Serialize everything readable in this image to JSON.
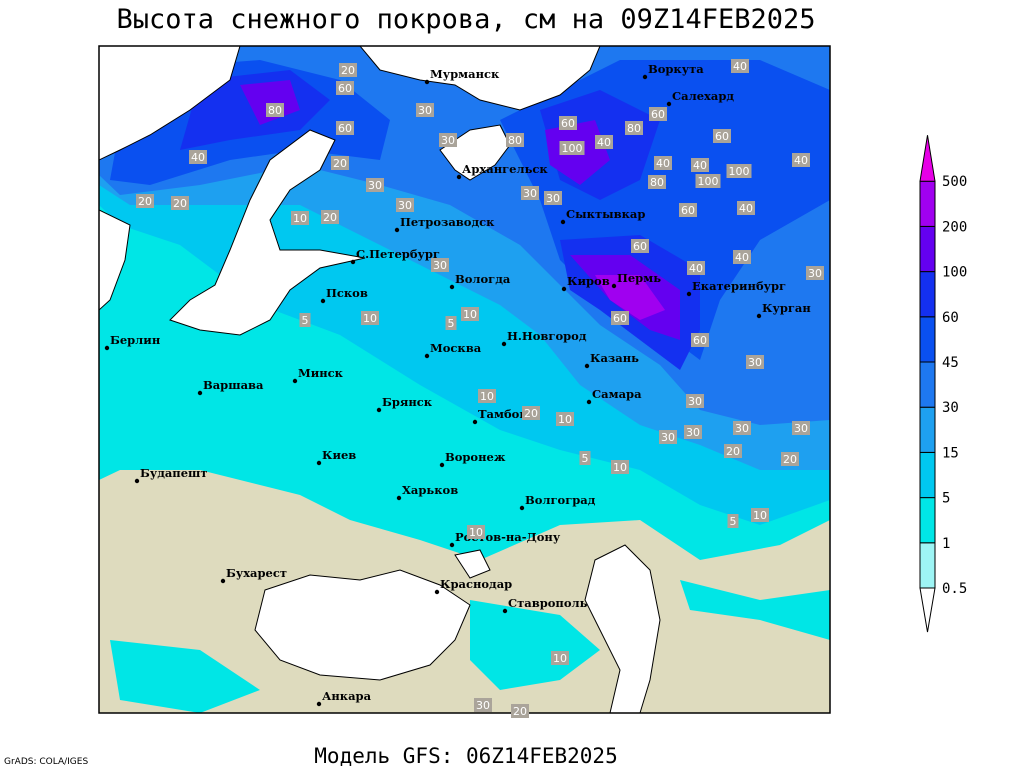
{
  "title": "Высота снежного покрова, см на 09Z14FEB2025",
  "footer": "Модель GFS: 06Z14FEB2025",
  "credit": "GrADS: COLA/IGES",
  "legend": {
    "levels": [
      0.5,
      1,
      5,
      15,
      30,
      45,
      60,
      100,
      200,
      500
    ],
    "colors": [
      "#ffffff",
      "#9ef5f5",
      "#00e6e6",
      "#00c8f0",
      "#1ea0f0",
      "#1e78f0",
      "#0a50f0",
      "#1430f0",
      "#6400f0",
      "#a000f0",
      "#e600e6"
    ]
  },
  "cities": [
    "Мурманск",
    "Воркута",
    "Салехард",
    "Архангельск",
    "Сыктывкар",
    "Петрозаводск",
    "С.Петербург",
    "Вологда",
    "Киров",
    "Пермь",
    "Екатеринбург",
    "Курган",
    "Псков",
    "Берлин",
    "Н.Новгород",
    "Москва",
    "Казань",
    "Минск",
    "Варшава",
    "Брянск",
    "Самара",
    "Тамбов",
    "Киев",
    "Воронеж",
    "Будапешт",
    "Харьков",
    "Волгоград",
    "Ростов-на-Дону",
    "Бухарест",
    "Краснодар",
    "Ставрополь",
    "Анкара"
  ],
  "contour_labels": [
    20,
    60,
    80,
    40,
    60,
    20,
    30,
    30,
    30,
    80,
    60,
    100,
    40,
    80,
    60,
    40,
    80,
    40,
    100,
    100,
    60,
    40,
    40,
    30,
    30,
    30,
    10,
    20,
    60,
    40,
    60,
    40,
    40,
    30,
    30,
    5,
    10,
    5,
    10,
    60,
    60,
    30,
    10,
    20,
    10,
    30,
    30,
    30,
    30,
    20,
    30,
    20,
    5,
    10,
    5,
    10,
    10,
    10,
    30,
    20,
    20,
    20
  ]
}
